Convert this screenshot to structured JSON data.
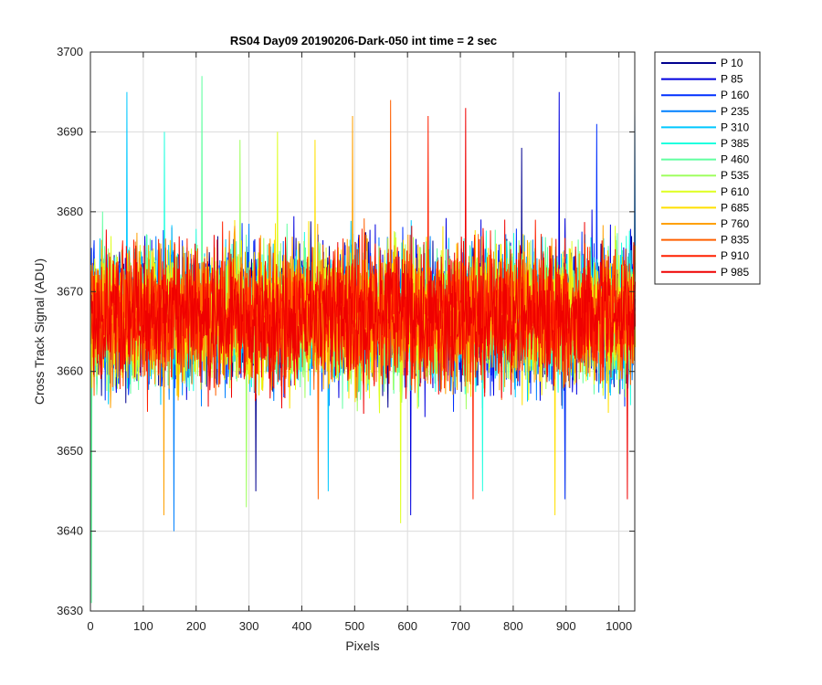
{
  "chart_data": {
    "type": "line",
    "title": "RS04 Day09 20190206-Dark-050 int time = 2 sec",
    "xlabel": "Pixels",
    "ylabel": "Cross Track Signal (ADU)",
    "xlim": [
      0,
      1030
    ],
    "ylim": [
      3630,
      3700
    ],
    "xticks": [
      0,
      100,
      200,
      300,
      400,
      500,
      600,
      700,
      800,
      900,
      1000
    ],
    "yticks": [
      3630,
      3640,
      3650,
      3660,
      3670,
      3680,
      3690,
      3700
    ],
    "grid": true,
    "legend_position": "outside-right",
    "x_count": 1032,
    "noise_center": 3667,
    "series": [
      {
        "name": "P 10",
        "color": "#00008F",
        "min": 3645,
        "max": 3688
      },
      {
        "name": "P 85",
        "color": "#0000DF",
        "min": 3642,
        "max": 3695
      },
      {
        "name": "P 160",
        "color": "#0030FF",
        "min": 3644,
        "max": 3691
      },
      {
        "name": "P 235",
        "color": "#0080FF",
        "min": 3640,
        "max": 3693
      },
      {
        "name": "P 310",
        "color": "#00C8FF",
        "min": 3645,
        "max": 3695
      },
      {
        "name": "P 385",
        "color": "#20FFDF",
        "min": 3645,
        "max": 3690
      },
      {
        "name": "P 460",
        "color": "#60FFA0",
        "min": 3631,
        "max": 3697
      },
      {
        "name": "P 535",
        "color": "#9FFF60",
        "min": 3643,
        "max": 3689
      },
      {
        "name": "P 610",
        "color": "#DFFF20",
        "min": 3641,
        "max": 3690
      },
      {
        "name": "P 685",
        "color": "#FFE000",
        "min": 3642,
        "max": 3689
      },
      {
        "name": "P 760",
        "color": "#FFA000",
        "min": 3642,
        "max": 3692
      },
      {
        "name": "P 835",
        "color": "#FF6000",
        "min": 3644,
        "max": 3694
      },
      {
        "name": "P 910",
        "color": "#FF2000",
        "min": 3644,
        "max": 3692
      },
      {
        "name": "P 985",
        "color": "#EF0000",
        "min": 3644,
        "max": 3693
      }
    ]
  }
}
